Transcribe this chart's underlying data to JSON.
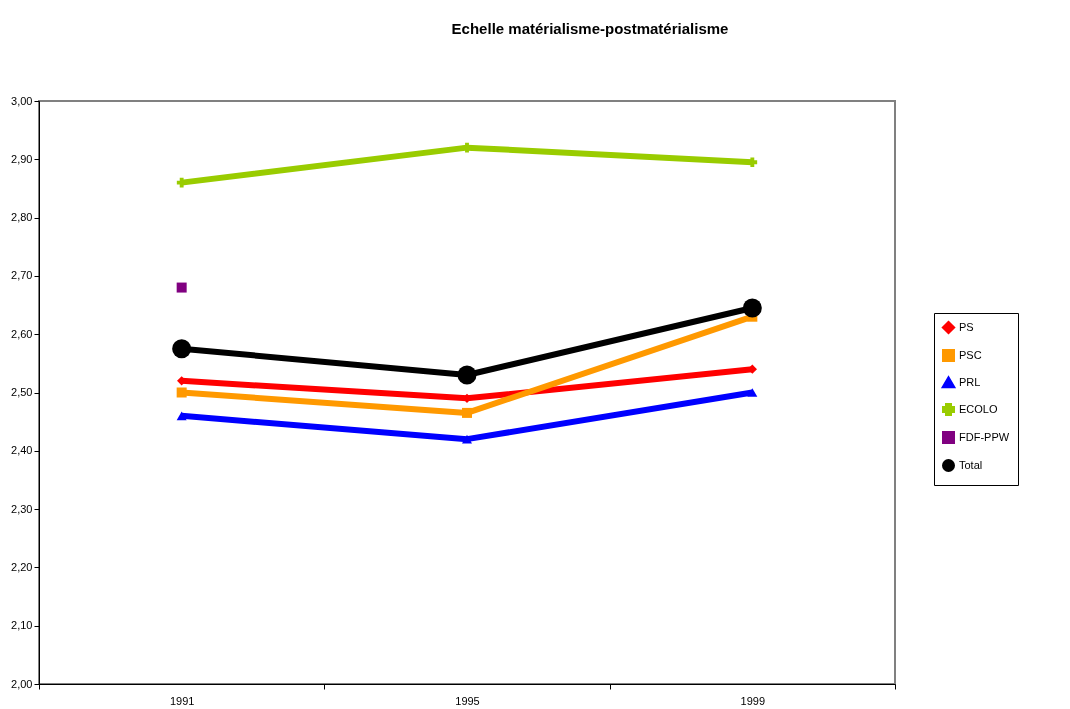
{
  "chart_data": {
    "type": "line",
    "title": "Echelle matérialisme-postmatérialisme",
    "categories": [
      "1991",
      "1995",
      "1999"
    ],
    "series": [
      {
        "name": "PS",
        "color": "#ff0000",
        "marker": "diamond",
        "values": [
          2.52,
          2.49,
          2.54
        ]
      },
      {
        "name": "PSC",
        "color": "#ff9900",
        "marker": "square",
        "values": [
          2.5,
          2.465,
          2.63
        ]
      },
      {
        "name": "PRL",
        "color": "#0000ff",
        "marker": "triangle",
        "values": [
          2.46,
          2.42,
          2.5
        ]
      },
      {
        "name": "ECOLO",
        "color": "#99cc00",
        "marker": "cross",
        "values": [
          2.86,
          2.92,
          2.895
        ]
      },
      {
        "name": "FDF-PPW",
        "color": "#800080",
        "marker": "square",
        "values": [
          2.68,
          null,
          null
        ]
      },
      {
        "name": "Total",
        "color": "#000000",
        "marker": "circle",
        "values": [
          2.575,
          2.53,
          2.645
        ]
      }
    ],
    "ylim": [
      2.0,
      3.0
    ],
    "yticks": [
      {
        "value": 2.0,
        "label": "2,00"
      },
      {
        "value": 2.1,
        "label": "2,10"
      },
      {
        "value": 2.2,
        "label": "2,20"
      },
      {
        "value": 2.3,
        "label": "2,30"
      },
      {
        "value": 2.4,
        "label": "2,40"
      },
      {
        "value": 2.5,
        "label": "2,50"
      },
      {
        "value": 2.6,
        "label": "2,60"
      },
      {
        "value": 2.7,
        "label": "2,70"
      },
      {
        "value": 2.8,
        "label": "2,80"
      },
      {
        "value": 2.9,
        "label": "2,90"
      },
      {
        "value": 3.0,
        "label": "3,00"
      }
    ],
    "grid": false,
    "legend": "right"
  }
}
